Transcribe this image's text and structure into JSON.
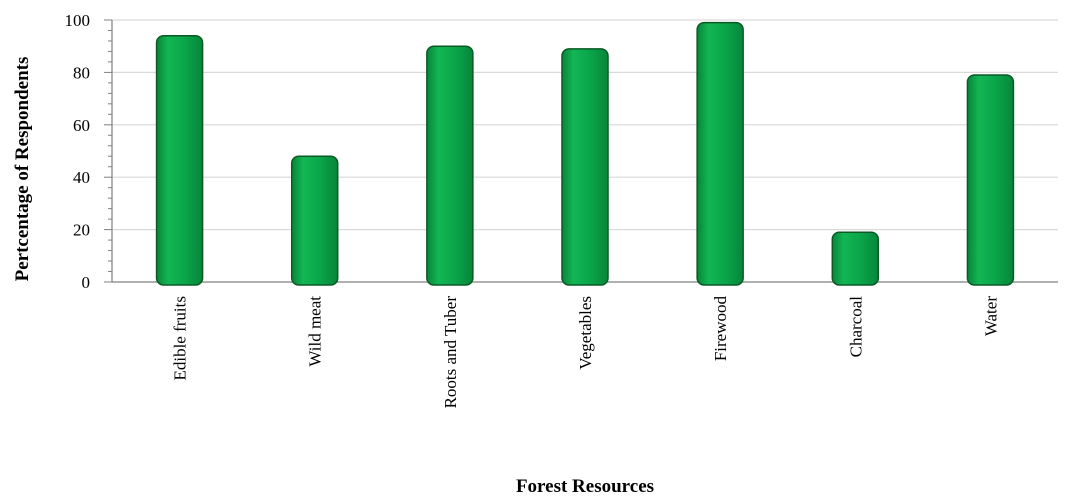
{
  "chart_data": {
    "type": "bar",
    "categories": [
      "Edible fruits",
      "Wild meat",
      "Roots and Tuber",
      "Vegetables",
      "Firewood",
      "Charcoal",
      "Water"
    ],
    "values": [
      94,
      48,
      90,
      89,
      99,
      19,
      79
    ],
    "xlabel": "Forest Resources",
    "ylabel": "Pertcentage of Respondents",
    "ylim": [
      0,
      100
    ],
    "yticks": [
      0,
      20,
      40,
      60,
      80,
      100
    ],
    "grid": true,
    "legend": "none"
  },
  "colors": {
    "bar_fill": "#0aa64a",
    "bar_stroke": "#0b5a26",
    "grid": "#d9d9d9",
    "axis": "#808080"
  }
}
